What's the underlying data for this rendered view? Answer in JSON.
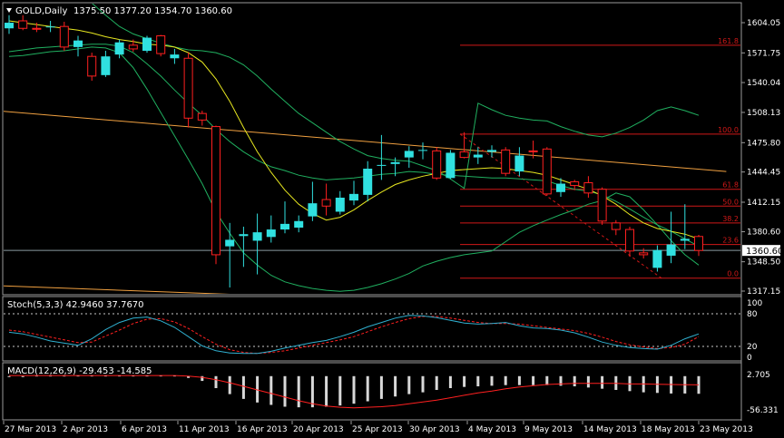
{
  "colors": {
    "background": "#000000",
    "frame": "#9a9a9a",
    "bull": "#30e0e0",
    "bear": "#ff2020",
    "ma_fast": "#e8e820",
    "bb_band": "#20b060",
    "trendline": "#f0a040",
    "fib": "#d01818",
    "oscillator_main": "#30b0d0",
    "oscillator_signal": "#ff2020",
    "macd_hist": "#d8d8d8",
    "price_box_bg": "#ffffff",
    "text": "#ffffff"
  },
  "header": {
    "symbol_period": "GOLD,Daily",
    "ohlc": "1375.50 1377.20 1354.70 1360.60"
  },
  "stoch_header": "Stoch(5,3,3) 42.9460 37.7670",
  "macd_header": "MACD(12,26,9) -29.453 -14.585",
  "current_price_label": "1360.60",
  "fib_labels": [
    "161.8",
    "100.0",
    "61.8",
    "50.0",
    "38.2",
    "23.6",
    "0.0"
  ],
  "chart_data": {
    "type": "candlestick",
    "price_axis": {
      "ticks": [
        "1604.05",
        "1571.75",
        "1540.04",
        "1508.13",
        "1475.80",
        "1444.45",
        "1412.15",
        "1380.60",
        "1348.50",
        "1317.15"
      ],
      "ylim": [
        1306,
        1620
      ]
    },
    "x_ticks": [
      "27 Mar 2013",
      "2 Apr 2013",
      "6 Apr 2013",
      "11 Apr 2013",
      "16 Apr 2013",
      "20 Apr 2013",
      "25 Apr 2013",
      "30 Apr 2013",
      "4 May 2013",
      "9 May 2013",
      "14 May 2013",
      "18 May 2013",
      "23 May 2013"
    ],
    "candles": [
      {
        "o": 1598,
        "h": 1612,
        "l": 1592,
        "c": 1604
      },
      {
        "o": 1606,
        "h": 1612,
        "l": 1596,
        "c": 1598
      },
      {
        "o": 1598,
        "h": 1604,
        "l": 1594,
        "c": 1597
      },
      {
        "o": 1599,
        "h": 1606,
        "l": 1594,
        "c": 1600
      },
      {
        "o": 1600,
        "h": 1605,
        "l": 1574,
        "c": 1578
      },
      {
        "o": 1578,
        "h": 1590,
        "l": 1568,
        "c": 1585
      },
      {
        "o": 1568,
        "h": 1572,
        "l": 1542,
        "c": 1547
      },
      {
        "o": 1548,
        "h": 1574,
        "l": 1546,
        "c": 1568
      },
      {
        "o": 1570,
        "h": 1586,
        "l": 1566,
        "c": 1583
      },
      {
        "o": 1580,
        "h": 1586,
        "l": 1573,
        "c": 1576
      },
      {
        "o": 1574,
        "h": 1590,
        "l": 1572,
        "c": 1588
      },
      {
        "o": 1590,
        "h": 1591,
        "l": 1568,
        "c": 1571
      },
      {
        "o": 1566,
        "h": 1576,
        "l": 1560,
        "c": 1570
      },
      {
        "o": 1566,
        "h": 1572,
        "l": 1492,
        "c": 1502
      },
      {
        "o": 1507,
        "h": 1510,
        "l": 1494,
        "c": 1500
      },
      {
        "o": 1493,
        "h": 1494,
        "l": 1346,
        "c": 1356
      },
      {
        "o": 1365,
        "h": 1390,
        "l": 1321,
        "c": 1372
      },
      {
        "o": 1376,
        "h": 1386,
        "l": 1343,
        "c": 1378
      },
      {
        "o": 1371,
        "h": 1400,
        "l": 1335,
        "c": 1380
      },
      {
        "o": 1375,
        "h": 1398,
        "l": 1369,
        "c": 1383
      },
      {
        "o": 1383,
        "h": 1413,
        "l": 1379,
        "c": 1389
      },
      {
        "o": 1385,
        "h": 1398,
        "l": 1380,
        "c": 1392
      },
      {
        "o": 1397,
        "h": 1434,
        "l": 1392,
        "c": 1411
      },
      {
        "o": 1415,
        "h": 1432,
        "l": 1398,
        "c": 1408
      },
      {
        "o": 1402,
        "h": 1424,
        "l": 1399,
        "c": 1417
      },
      {
        "o": 1414,
        "h": 1435,
        "l": 1409,
        "c": 1421
      },
      {
        "o": 1420,
        "h": 1456,
        "l": 1413,
        "c": 1448
      },
      {
        "o": 1451,
        "h": 1484,
        "l": 1436,
        "c": 1452
      },
      {
        "o": 1453,
        "h": 1460,
        "l": 1440,
        "c": 1455
      },
      {
        "o": 1460,
        "h": 1472,
        "l": 1449,
        "c": 1467
      },
      {
        "o": 1467,
        "h": 1476,
        "l": 1458,
        "c": 1468
      },
      {
        "o": 1467,
        "h": 1471,
        "l": 1436,
        "c": 1438
      },
      {
        "o": 1438,
        "h": 1468,
        "l": 1437,
        "c": 1465
      },
      {
        "o": 1466,
        "h": 1487,
        "l": 1459,
        "c": 1460
      },
      {
        "o": 1460,
        "h": 1471,
        "l": 1453,
        "c": 1463
      },
      {
        "o": 1466,
        "h": 1473,
        "l": 1460,
        "c": 1468
      },
      {
        "o": 1468,
        "h": 1471,
        "l": 1440,
        "c": 1443
      },
      {
        "o": 1445,
        "h": 1471,
        "l": 1440,
        "c": 1462
      },
      {
        "o": 1467,
        "h": 1478,
        "l": 1459,
        "c": 1466
      },
      {
        "o": 1469,
        "h": 1471,
        "l": 1419,
        "c": 1421
      },
      {
        "o": 1423,
        "h": 1438,
        "l": 1418,
        "c": 1432
      },
      {
        "o": 1434,
        "h": 1436,
        "l": 1425,
        "c": 1430
      },
      {
        "o": 1433,
        "h": 1440,
        "l": 1417,
        "c": 1422
      },
      {
        "o": 1426,
        "h": 1428,
        "l": 1388,
        "c": 1392
      },
      {
        "o": 1390,
        "h": 1393,
        "l": 1377,
        "c": 1383
      },
      {
        "o": 1383,
        "h": 1386,
        "l": 1354,
        "c": 1360
      },
      {
        "o": 1358,
        "h": 1363,
        "l": 1352,
        "c": 1356
      },
      {
        "o": 1342,
        "h": 1366,
        "l": 1338,
        "c": 1361
      },
      {
        "o": 1355,
        "h": 1402,
        "l": 1347,
        "c": 1367
      },
      {
        "o": 1371,
        "h": 1410,
        "l": 1362,
        "c": 1373
      },
      {
        "o": 1375.5,
        "h": 1377.2,
        "l": 1354.7,
        "c": 1360.6
      }
    ],
    "ma_fast": [
      1606,
      1604,
      1602,
      1600,
      1598,
      1596,
      1593,
      1589,
      1586,
      1584,
      1581,
      1580,
      1578,
      1572,
      1562,
      1544,
      1520,
      1492,
      1466,
      1444,
      1425,
      1410,
      1400,
      1393,
      1396,
      1404,
      1414,
      1423,
      1431,
      1436,
      1440,
      1443,
      1446,
      1447,
      1448,
      1449,
      1448,
      1446,
      1444,
      1441,
      1436,
      1431,
      1426,
      1419,
      1410,
      1399,
      1390,
      1384,
      1381,
      1378,
      1373
    ],
    "bb_upper": [
      1678,
      1672,
      1666,
      1658,
      1648,
      1636,
      1625,
      1612,
      1600,
      1592,
      1587,
      1582,
      1578,
      1575,
      1574,
      1572,
      1567,
      1559,
      1547,
      1533,
      1520,
      1507,
      1497,
      1487,
      1477,
      1469,
      1462,
      1459,
      1457,
      1456,
      1451,
      1446,
      1437,
      1427,
      1518,
      1511,
      1505,
      1502,
      1500,
      1499,
      1493,
      1488,
      1484,
      1482,
      1486,
      1492,
      1500,
      1510,
      1514,
      1510,
      1505
    ],
    "bb_mid": [
      1573,
      1575,
      1577,
      1578,
      1579,
      1580,
      1581,
      1581,
      1579,
      1572,
      1560,
      1547,
      1532,
      1518,
      1505,
      1490,
      1477,
      1466,
      1457,
      1450,
      1446,
      1441,
      1438,
      1436,
      1437,
      1438,
      1440,
      1442,
      1443,
      1445,
      1444,
      1442,
      1441,
      1440,
      1439,
      1438,
      1438,
      1437,
      1436,
      1435,
      1430,
      1426,
      1424,
      1420,
      1413,
      1405,
      1396,
      1388,
      1381,
      1373,
      1365
    ],
    "bb_lower": [
      1568,
      1569,
      1571,
      1573,
      1574,
      1576,
      1578,
      1577,
      1572,
      1556,
      1533,
      1508,
      1483,
      1458,
      1432,
      1402,
      1379,
      1358,
      1345,
      1334,
      1327,
      1323,
      1320,
      1318,
      1317,
      1318,
      1321,
      1325,
      1330,
      1336,
      1344,
      1349,
      1353,
      1356,
      1358,
      1360,
      1370,
      1380,
      1387,
      1393,
      1399,
      1404,
      1410,
      1414,
      1422,
      1418,
      1404,
      1388,
      1371,
      1356,
      1345
    ],
    "trendline_upper": [
      [
        -1,
        1510
      ],
      [
        52,
        1445
      ]
    ],
    "trendline_lower": [
      [
        -1,
        1323
      ],
      [
        34,
        1304
      ]
    ],
    "fib_levels": {
      "161.8": 1580,
      "100.0": 1485,
      "61.8": 1426,
      "50.0": 1408,
      "38.2": 1390,
      "23.6": 1367,
      "0.0": 1331
    },
    "stoch_k": [
      46,
      43,
      37,
      30,
      26,
      22,
      34,
      51,
      64,
      72,
      74,
      67,
      55,
      38,
      21,
      12,
      8,
      7,
      7,
      11,
      17,
      22,
      27,
      31,
      38,
      46,
      56,
      64,
      72,
      77,
      76,
      73,
      68,
      63,
      61,
      62,
      64,
      58,
      54,
      53,
      50,
      45,
      37,
      28,
      22,
      18,
      16,
      15,
      22,
      34,
      43
    ],
    "stoch_d": [
      50,
      47,
      42,
      37,
      32,
      27,
      28,
      39,
      50,
      62,
      70,
      71,
      65,
      53,
      38,
      24,
      14,
      9,
      7,
      9,
      12,
      17,
      22,
      27,
      32,
      38,
      47,
      56,
      64,
      71,
      75,
      75,
      72,
      68,
      64,
      62,
      62,
      61,
      58,
      55,
      52,
      49,
      44,
      37,
      29,
      23,
      19,
      16,
      18,
      24,
      38
    ],
    "stoch_levels": [
      80,
      20
    ],
    "stoch_ticks": [
      "100",
      "80",
      "20",
      "0"
    ],
    "macd_hist": [
      0,
      0,
      1,
      1,
      1,
      1,
      1,
      1,
      1,
      1,
      1,
      1,
      1,
      -3,
      -8,
      -20,
      -30,
      -38,
      -44,
      -48,
      -51,
      -52,
      -52,
      -51,
      -49,
      -46,
      -42,
      -38,
      -34,
      -30,
      -27,
      -23,
      -20,
      -18,
      -17,
      -16,
      -15,
      -15,
      -15,
      -15,
      -16,
      -17,
      -19,
      -21,
      -23,
      -25,
      -27,
      -28,
      -29,
      -29,
      -29.453
    ],
    "macd_signal": [
      1,
      1,
      1,
      1,
      1,
      1,
      1,
      1,
      1,
      1,
      1,
      1,
      1,
      0,
      -2,
      -6,
      -11,
      -17,
      -23,
      -29,
      -35,
      -41,
      -46,
      -50,
      -52,
      -53,
      -52,
      -51,
      -49,
      -46,
      -43,
      -40,
      -36,
      -32,
      -28,
      -25,
      -21,
      -18,
      -16,
      -14,
      -13,
      -12,
      -12,
      -12,
      -12,
      -13,
      -13,
      -13.5,
      -14,
      -14.2,
      -14.585
    ],
    "macd_ticks": [
      "2.705",
      "-56.331"
    ]
  }
}
